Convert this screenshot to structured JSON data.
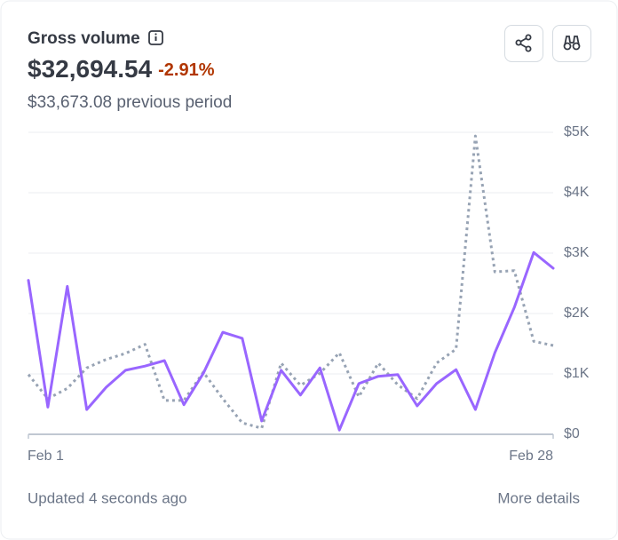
{
  "header": {
    "title": "Gross volume",
    "value": "$32,694.54",
    "change": "-2.91%",
    "previous": "$33,673.08 previous period"
  },
  "chart_data": {
    "type": "line",
    "categories": [
      "Feb 1",
      null,
      null,
      null,
      null,
      null,
      null,
      null,
      null,
      null,
      null,
      null,
      null,
      null,
      null,
      null,
      null,
      null,
      null,
      null,
      null,
      null,
      null,
      null,
      null,
      null,
      null,
      "Feb 28"
    ],
    "series": [
      {
        "color": "#97a3b4",
        "style": "dotted",
        "values": [
          990,
          590,
          760,
          1100,
          1240,
          1340,
          1490,
          560,
          560,
          1030,
          590,
          190,
          100,
          1180,
          810,
          1010,
          1350,
          620,
          1180,
          820,
          590,
          1180,
          1410,
          4940,
          2690,
          2710,
          1540,
          1470
        ]
      },
      {
        "color": "#9966ff",
        "style": "solid",
        "values": [
          2550,
          450,
          2450,
          410,
          780,
          1060,
          1130,
          1220,
          490,
          1010,
          1690,
          1590,
          220,
          1060,
          650,
          1100,
          70,
          840,
          960,
          990,
          470,
          840,
          1070,
          410,
          1350,
          2100,
          3010,
          2750
        ]
      }
    ],
    "ylim": [
      0,
      5000
    ],
    "yticks": [
      {
        "value": 0,
        "label": "$0"
      },
      {
        "value": 1000,
        "label": "$1K"
      },
      {
        "value": 2000,
        "label": "$2K"
      },
      {
        "value": 3000,
        "label": "$3K"
      },
      {
        "value": 4000,
        "label": "$4K"
      },
      {
        "value": 5000,
        "label": "$5K"
      }
    ],
    "grid": true
  },
  "footer": {
    "updated": "Updated 4 seconds ago",
    "link": "More details"
  }
}
